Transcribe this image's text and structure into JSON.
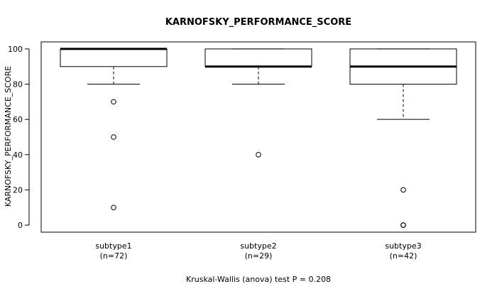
{
  "chart_data": {
    "type": "boxplot",
    "title": "KARNOFSKY_PERFORMANCE_SCORE",
    "ylabel": "KARNOFSKY_PERFORMANCE_SCORE",
    "xlabel": "",
    "ylim": [
      -4,
      104
    ],
    "yticks": [
      0,
      20,
      40,
      60,
      80,
      100
    ],
    "footnote": "Kruskal-Wallis (anova) test P = 0.208",
    "groups": [
      {
        "name": "subtype1",
        "count_label": "(n=72)",
        "whisker_low": 80,
        "q1": 90,
        "median": 100,
        "q3": 100,
        "whisker_high": 100,
        "outliers": [
          70,
          50,
          10
        ]
      },
      {
        "name": "subtype2",
        "count_label": "(n=29)",
        "whisker_low": 80,
        "q1": 90,
        "median": 90,
        "q3": 100,
        "whisker_high": 100,
        "outliers": [
          40
        ]
      },
      {
        "name": "subtype3",
        "count_label": "(n=42)",
        "whisker_low": 60,
        "q1": 80,
        "median": 90,
        "q3": 100,
        "whisker_high": 100,
        "outliers": [
          20,
          0,
          0
        ]
      }
    ]
  }
}
